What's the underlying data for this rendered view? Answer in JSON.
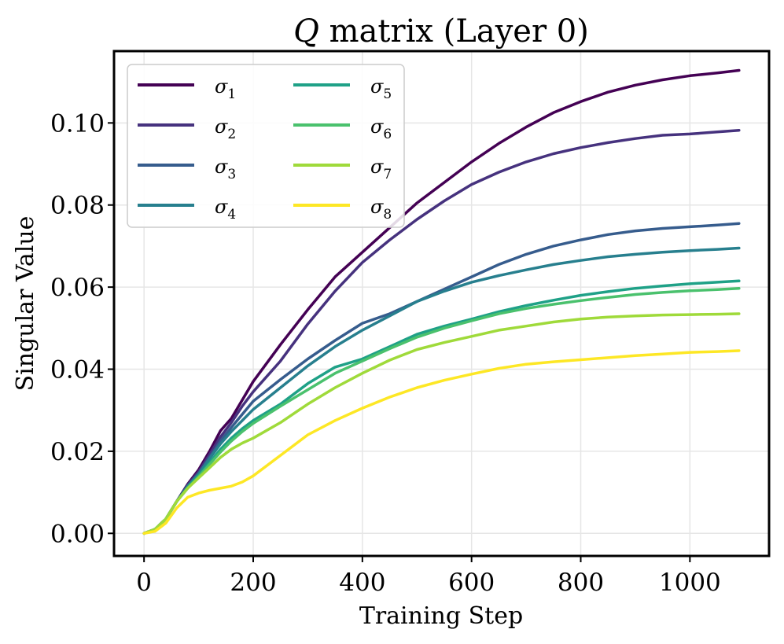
{
  "chart_data": {
    "type": "line",
    "title": "Q matrix (Layer 0)",
    "title_italic_part": "Q",
    "title_rest": " matrix (Layer 0)",
    "xlabel": "Training Step",
    "ylabel": "Singular Value",
    "xlim": [
      -55,
      1145
    ],
    "ylim": [
      -0.0055,
      0.1175
    ],
    "xticks": [
      0,
      200,
      400,
      600,
      800,
      1000
    ],
    "xtick_labels": [
      "0",
      "200",
      "400",
      "600",
      "800",
      "1000"
    ],
    "yticks": [
      0.0,
      0.02,
      0.04,
      0.06,
      0.08,
      0.1
    ],
    "ytick_labels": [
      "0.00",
      "0.02",
      "0.04",
      "0.06",
      "0.08",
      "0.10"
    ],
    "grid": true,
    "legend_position": "top-left",
    "legend_columns": 2,
    "series": [
      {
        "name": "σ1",
        "sub": "1",
        "color": "#440154",
        "x": [
          0,
          20,
          40,
          60,
          80,
          100,
          120,
          140,
          160,
          180,
          200,
          250,
          300,
          350,
          400,
          450,
          500,
          550,
          600,
          650,
          700,
          750,
          800,
          850,
          900,
          950,
          1000,
          1050,
          1090
        ],
        "y": [
          0,
          0.001,
          0.0035,
          0.0078,
          0.012,
          0.0155,
          0.02,
          0.025,
          0.028,
          0.0325,
          0.037,
          0.046,
          0.0545,
          0.0625,
          0.0685,
          0.0745,
          0.0805,
          0.0855,
          0.0905,
          0.095,
          0.099,
          0.1025,
          0.1052,
          0.1075,
          0.1092,
          0.1105,
          0.1115,
          0.1122,
          0.1128
        ]
      },
      {
        "name": "σ2",
        "sub": "2",
        "color": "#46327e",
        "x": [
          0,
          20,
          40,
          60,
          80,
          100,
          120,
          140,
          160,
          180,
          200,
          250,
          300,
          350,
          400,
          450,
          500,
          550,
          600,
          650,
          700,
          750,
          800,
          850,
          900,
          950,
          1000,
          1050,
          1090
        ],
        "y": [
          0,
          0.001,
          0.0035,
          0.0078,
          0.0118,
          0.015,
          0.0192,
          0.0235,
          0.027,
          0.031,
          0.0345,
          0.042,
          0.051,
          0.059,
          0.066,
          0.0715,
          0.0765,
          0.081,
          0.085,
          0.088,
          0.0905,
          0.0925,
          0.094,
          0.0952,
          0.0962,
          0.097,
          0.0973,
          0.0978,
          0.0982
        ]
      },
      {
        "name": "σ3",
        "sub": "3",
        "color": "#365c8d",
        "x": [
          0,
          20,
          40,
          60,
          80,
          100,
          120,
          140,
          160,
          180,
          200,
          250,
          300,
          350,
          400,
          450,
          500,
          550,
          600,
          650,
          700,
          750,
          800,
          850,
          900,
          950,
          1000,
          1050,
          1090
        ],
        "y": [
          0,
          0.001,
          0.0035,
          0.0078,
          0.0115,
          0.0145,
          0.0185,
          0.0225,
          0.0258,
          0.029,
          0.0322,
          0.0375,
          0.0425,
          0.047,
          0.0512,
          0.0535,
          0.0565,
          0.0595,
          0.0625,
          0.0655,
          0.068,
          0.07,
          0.0715,
          0.0728,
          0.0737,
          0.0743,
          0.0747,
          0.0751,
          0.0755
        ]
      },
      {
        "name": "σ4",
        "sub": "4",
        "color": "#277f8e",
        "x": [
          0,
          20,
          40,
          60,
          80,
          100,
          120,
          140,
          160,
          180,
          200,
          250,
          300,
          350,
          400,
          450,
          500,
          550,
          600,
          650,
          700,
          750,
          800,
          850,
          900,
          950,
          1000,
          1050,
          1090
        ],
        "y": [
          0,
          0.001,
          0.0035,
          0.0078,
          0.0115,
          0.0145,
          0.0182,
          0.0218,
          0.0248,
          0.0275,
          0.0302,
          0.0355,
          0.0408,
          0.0455,
          0.0495,
          0.053,
          0.0565,
          0.059,
          0.0612,
          0.0628,
          0.0642,
          0.0655,
          0.0665,
          0.0674,
          0.068,
          0.0685,
          0.0689,
          0.0692,
          0.0695
        ]
      },
      {
        "name": "σ5",
        "sub": "5",
        "color": "#1fa187",
        "x": [
          0,
          20,
          40,
          60,
          80,
          100,
          120,
          140,
          160,
          180,
          200,
          250,
          300,
          350,
          400,
          450,
          500,
          550,
          600,
          650,
          700,
          750,
          800,
          850,
          900,
          950,
          1000,
          1050,
          1090
        ],
        "y": [
          0,
          0.001,
          0.0035,
          0.0078,
          0.0112,
          0.014,
          0.0172,
          0.0205,
          0.0232,
          0.0255,
          0.0275,
          0.0315,
          0.0365,
          0.0405,
          0.0425,
          0.0455,
          0.0485,
          0.0505,
          0.0522,
          0.054,
          0.0555,
          0.0568,
          0.058,
          0.0589,
          0.0597,
          0.0603,
          0.0608,
          0.0612,
          0.0615
        ]
      },
      {
        "name": "σ6",
        "sub": "6",
        "color": "#4ac16d",
        "x": [
          0,
          20,
          40,
          60,
          80,
          100,
          120,
          140,
          160,
          180,
          200,
          250,
          300,
          350,
          400,
          450,
          500,
          550,
          600,
          650,
          700,
          750,
          800,
          850,
          900,
          950,
          1000,
          1050,
          1090
        ],
        "y": [
          0,
          0.001,
          0.0035,
          0.0078,
          0.011,
          0.0138,
          0.0168,
          0.0198,
          0.0225,
          0.0248,
          0.0268,
          0.031,
          0.035,
          0.039,
          0.042,
          0.045,
          0.0478,
          0.05,
          0.0518,
          0.0535,
          0.0548,
          0.0558,
          0.0567,
          0.0575,
          0.0582,
          0.0587,
          0.0591,
          0.0594,
          0.0597
        ]
      },
      {
        "name": "σ7",
        "sub": "7",
        "color": "#9fda3a",
        "x": [
          0,
          20,
          40,
          60,
          80,
          100,
          120,
          140,
          160,
          180,
          200,
          250,
          300,
          350,
          400,
          450,
          500,
          550,
          600,
          650,
          700,
          750,
          800,
          850,
          900,
          950,
          1000,
          1050,
          1090
        ],
        "y": [
          0,
          0.001,
          0.0035,
          0.0078,
          0.011,
          0.0135,
          0.016,
          0.0185,
          0.0205,
          0.022,
          0.0232,
          0.027,
          0.0315,
          0.0355,
          0.039,
          0.0422,
          0.0448,
          0.0465,
          0.048,
          0.0495,
          0.0505,
          0.0515,
          0.0522,
          0.0527,
          0.053,
          0.0532,
          0.0533,
          0.0534,
          0.0535
        ]
      },
      {
        "name": "σ8",
        "sub": "8",
        "color": "#fde725",
        "x": [
          0,
          20,
          40,
          60,
          80,
          100,
          120,
          140,
          160,
          180,
          200,
          250,
          300,
          350,
          400,
          450,
          500,
          550,
          600,
          650,
          700,
          750,
          800,
          850,
          900,
          950,
          1000,
          1050,
          1090
        ],
        "y": [
          0,
          0.0005,
          0.0025,
          0.0062,
          0.0088,
          0.0098,
          0.0105,
          0.011,
          0.0115,
          0.0125,
          0.014,
          0.019,
          0.024,
          0.0275,
          0.0305,
          0.0332,
          0.0355,
          0.0373,
          0.0388,
          0.0402,
          0.0412,
          0.0418,
          0.0423,
          0.0428,
          0.0433,
          0.0437,
          0.0441,
          0.0443,
          0.0445
        ]
      }
    ]
  }
}
